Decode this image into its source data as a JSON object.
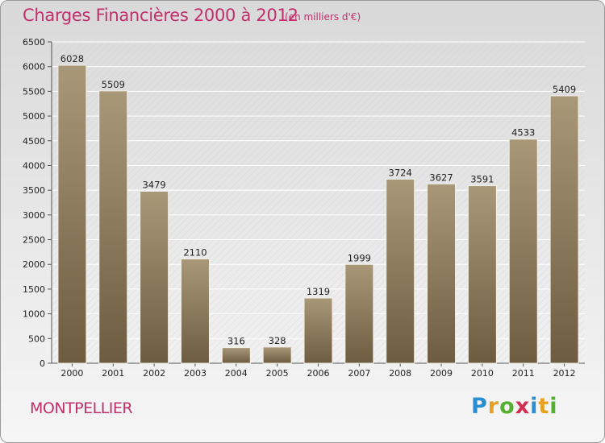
{
  "header": {
    "title": "Charges Financières 2000 à 2012",
    "subtitle": "(en milliers d'€)"
  },
  "footer": {
    "city": "MONTPELLIER",
    "logo_text": "Proxiti"
  },
  "colors": {
    "accent": "#c0306a",
    "bar_top": "#a89878",
    "bar_bottom": "#6e5c40"
  },
  "chart_data": {
    "type": "bar",
    "title": "Charges Financières 2000 à 2012",
    "subtitle": "(en milliers d'€)",
    "categories": [
      "2000",
      "2001",
      "2002",
      "2003",
      "2004",
      "2005",
      "2006",
      "2007",
      "2008",
      "2009",
      "2010",
      "2011",
      "2012"
    ],
    "values": [
      6028,
      5509,
      3479,
      2110,
      316,
      328,
      1319,
      1999,
      3724,
      3627,
      3591,
      4533,
      5409
    ],
    "ylim": [
      0,
      6500
    ],
    "yticks": [
      0,
      500,
      1000,
      1500,
      2000,
      2500,
      3000,
      3500,
      4000,
      4500,
      5000,
      5500,
      6000,
      6500
    ],
    "grid": true,
    "xlabel": "",
    "ylabel": ""
  }
}
